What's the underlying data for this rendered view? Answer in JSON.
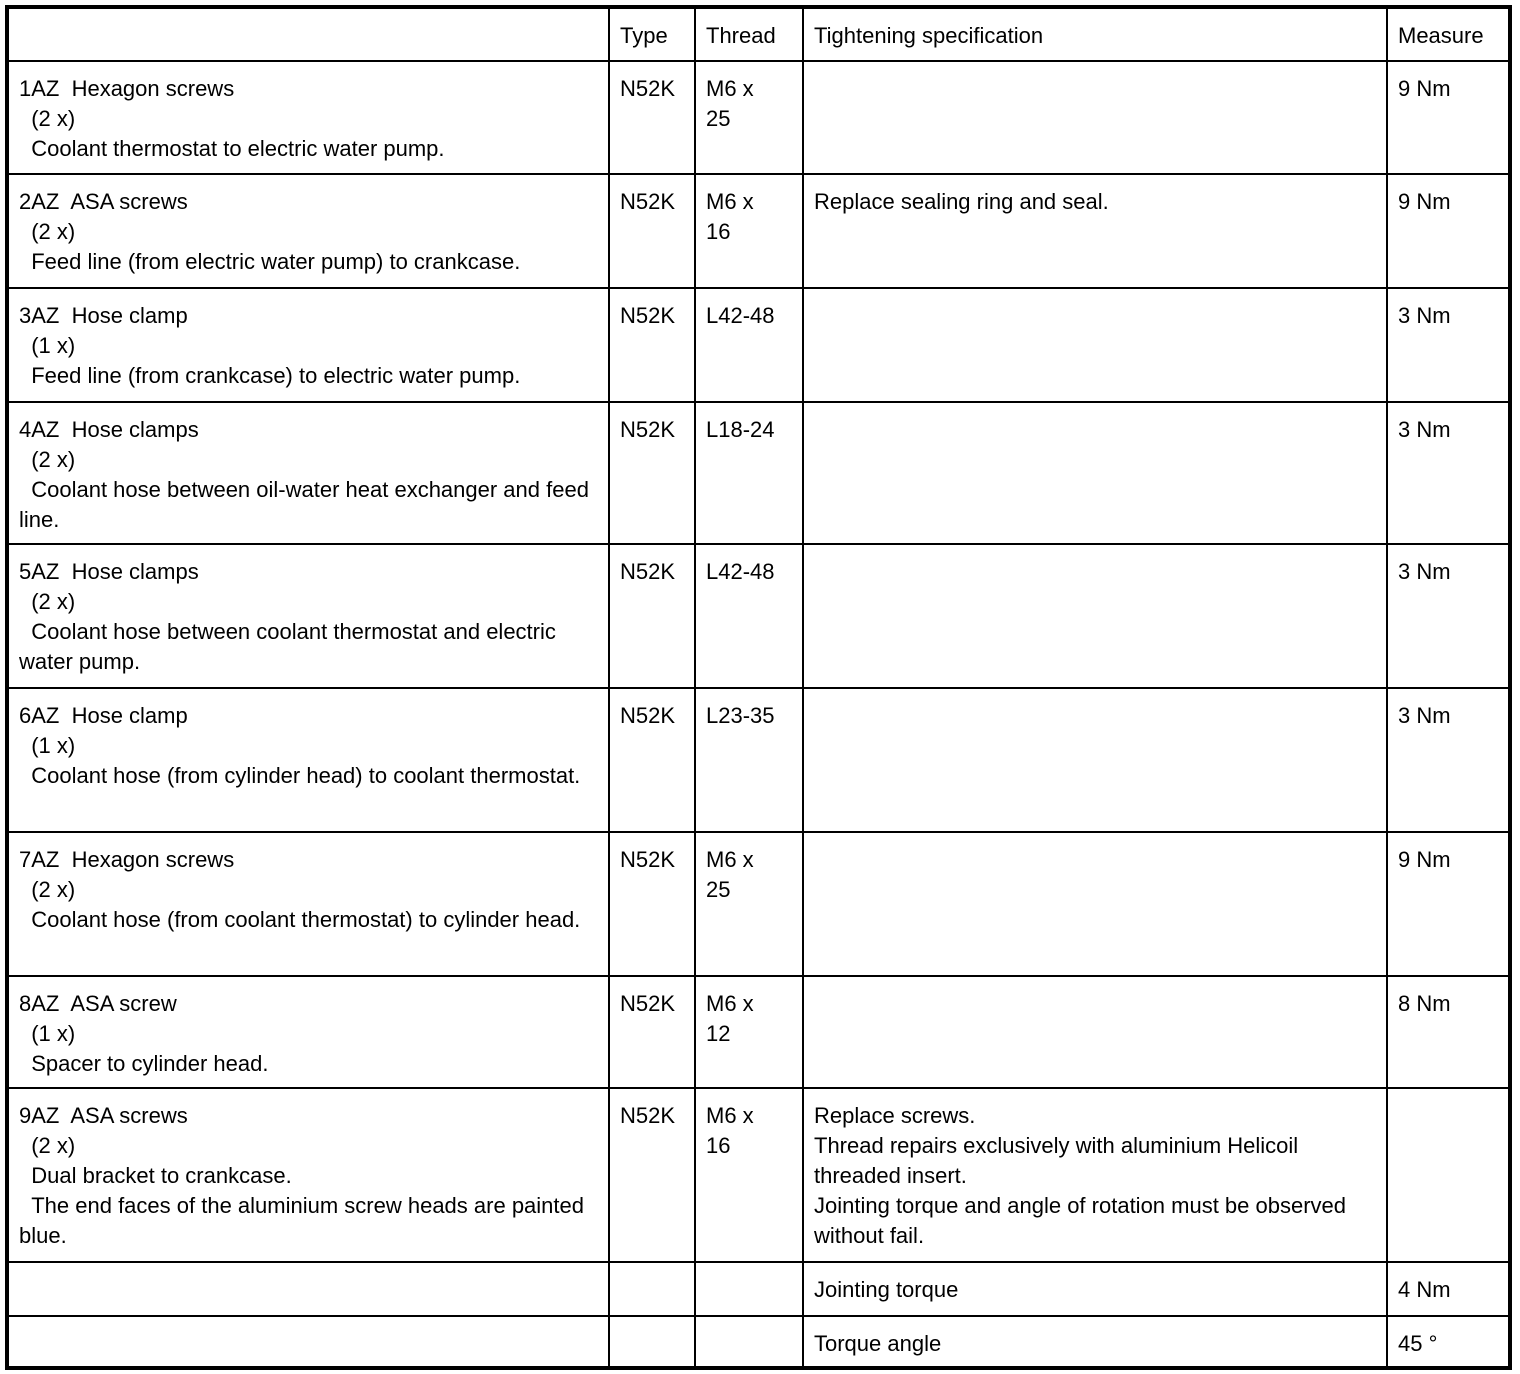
{
  "headers": [
    "",
    "Type",
    "Thread",
    "Tightening specification",
    "Measure"
  ],
  "rows": [
    {
      "item": "1AZ  Hexagon screws\n  (2 x)\n  Coolant thermostat to electric water pump.",
      "type": "N52K",
      "thread": "M6 x\n25",
      "spec": "",
      "measure": "9 Nm"
    },
    {
      "item": "2AZ  ASA screws\n  (2 x)\n  Feed line (from electric water pump) to crankcase.",
      "type": "N52K",
      "thread": "M6 x\n16",
      "spec": "Replace sealing ring and seal.",
      "measure": "9 Nm"
    },
    {
      "item": "3AZ  Hose clamp\n  (1 x)\n  Feed line (from crankcase) to electric water pump.",
      "type": "N52K",
      "thread": "L42-48",
      "spec": "",
      "measure": "3 Nm"
    },
    {
      "item": "4AZ  Hose clamps\n  (2 x)\n  Coolant hose between oil-water heat exchanger and feed line.",
      "type": "N52K",
      "thread": "L18-24",
      "spec": "",
      "measure": "3 Nm"
    },
    {
      "item": "5AZ  Hose clamps\n  (2 x)\n  Coolant hose between coolant thermostat and electric water pump.",
      "type": "N52K",
      "thread": "L42-48",
      "spec": "",
      "measure": "3 Nm"
    },
    {
      "item": "6AZ  Hose clamp\n  (1 x)\n  Coolant hose (from cylinder head) to coolant thermostat.",
      "type": "N52K",
      "thread": "L23-35",
      "spec": "",
      "measure": "3 Nm"
    },
    {
      "item": "7AZ  Hexagon screws\n  (2 x)\n  Coolant hose (from coolant thermostat) to cylinder head.",
      "type": "N52K",
      "thread": "M6 x\n25",
      "spec": "",
      "measure": "9 Nm"
    },
    {
      "item": "8AZ  ASA screw\n  (1 x)\n  Spacer to cylinder head.",
      "type": "N52K",
      "thread": "M6 x\n12",
      "spec": "",
      "measure": "8 Nm"
    },
    {
      "item": "9AZ  ASA screws\n  (2 x)\n  Dual bracket to crankcase.\n  The end faces of the aluminium screw heads are painted blue.",
      "type": "N52K",
      "thread": "M6 x\n16",
      "spec": "Replace screws.\nThread repairs exclusively with aluminium Helicoil threaded insert.\nJointing torque and angle of rotation must be observed without fail.",
      "measure": ""
    },
    {
      "item": "",
      "type": "",
      "thread": "",
      "spec": "Jointing torque",
      "measure": "4 Nm"
    },
    {
      "item": "",
      "type": "",
      "thread": "",
      "spec": "Torque angle",
      "measure": "45 °"
    }
  ]
}
